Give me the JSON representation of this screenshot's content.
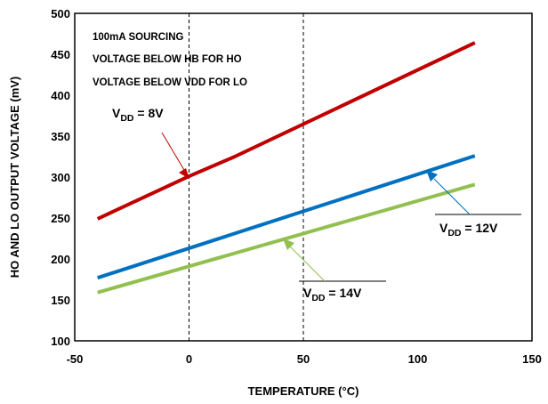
{
  "chart_data": {
    "type": "line",
    "xlabel": "TEMPERATURE (°C)",
    "ylabel": "HO AND LO OUTPUT VOLTAGE (mV)",
    "xlim": [
      -50,
      150
    ],
    "ylim": [
      100,
      500
    ],
    "x_ticks": [
      "-50",
      "0",
      "50",
      "100",
      "150"
    ],
    "y_ticks": [
      "100",
      "150",
      "200",
      "250",
      "300",
      "350",
      "400",
      "450",
      "500"
    ],
    "grid": "dashed at x=0 and x=50 only",
    "annotations": [
      "100mA SOURCING",
      "VOLTAGE BELOW HB FOR HO",
      "VOLTAGE BELOW VDD FOR LO"
    ],
    "series": [
      {
        "label_main": "V",
        "label_sub": "DD",
        "label_rest": " = 8V",
        "color": "#c00000",
        "x": [
          -40,
          0,
          20,
          125
        ],
        "y": [
          249,
          301,
          325,
          464
        ]
      },
      {
        "label_main": "V",
        "label_sub": "DD",
        "label_rest": " = 12V",
        "color": "#0070c0",
        "x": [
          -40,
          125
        ],
        "y": [
          177,
          326
        ]
      },
      {
        "label_main": "V",
        "label_sub": "DD",
        "label_rest": " = 14V",
        "color": "#92c050",
        "x": [
          -40,
          125
        ],
        "y": [
          159,
          291
        ]
      }
    ]
  }
}
